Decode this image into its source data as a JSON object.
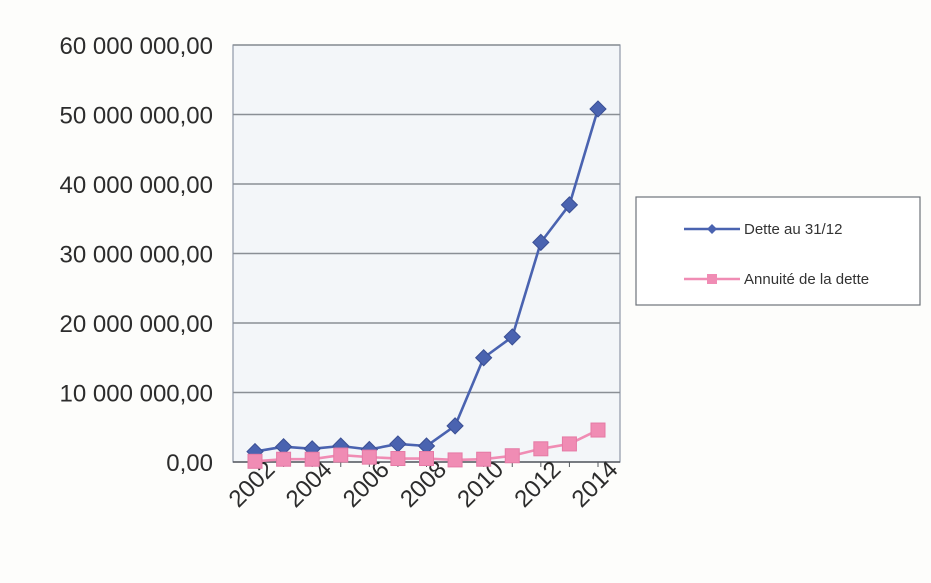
{
  "chart_data": {
    "type": "line",
    "title": "",
    "xlabel": "",
    "ylabel": "",
    "ylim": [
      0,
      60000000
    ],
    "y_ticks": [
      0,
      10000000,
      20000000,
      30000000,
      40000000,
      50000000,
      60000000
    ],
    "y_tick_labels": [
      "0,00",
      "10 000 000,00",
      "20 000 000,00",
      "30 000 000,00",
      "40 000 000,00",
      "50 000 000,00",
      "60 000 000,00"
    ],
    "x": [
      2002,
      2003,
      2004,
      2005,
      2006,
      2007,
      2008,
      2009,
      2010,
      2011,
      2012,
      2013,
      2014
    ],
    "x_tick_labels": [
      "2002",
      "2004",
      "2006",
      "2008",
      "2010",
      "2012",
      "2014"
    ],
    "x_tick_values": [
      2002,
      2004,
      2006,
      2008,
      2010,
      2012,
      2014
    ],
    "grid": true,
    "legend_position": "right",
    "series": [
      {
        "name": "Dette au 31/12",
        "color": "#4a63b0",
        "marker": "diamond",
        "values": [
          1500000,
          2200000,
          1900000,
          2300000,
          1800000,
          2600000,
          2300000,
          5200000,
          15000000,
          18000000,
          31600000,
          37000000,
          50800000
        ]
      },
      {
        "name": "Annuité de la dette",
        "color": "#f08cb4",
        "marker": "square",
        "values": [
          100000,
          400000,
          400000,
          1000000,
          700000,
          500000,
          500000,
          300000,
          400000,
          900000,
          1900000,
          2600000,
          4600000
        ]
      }
    ]
  }
}
